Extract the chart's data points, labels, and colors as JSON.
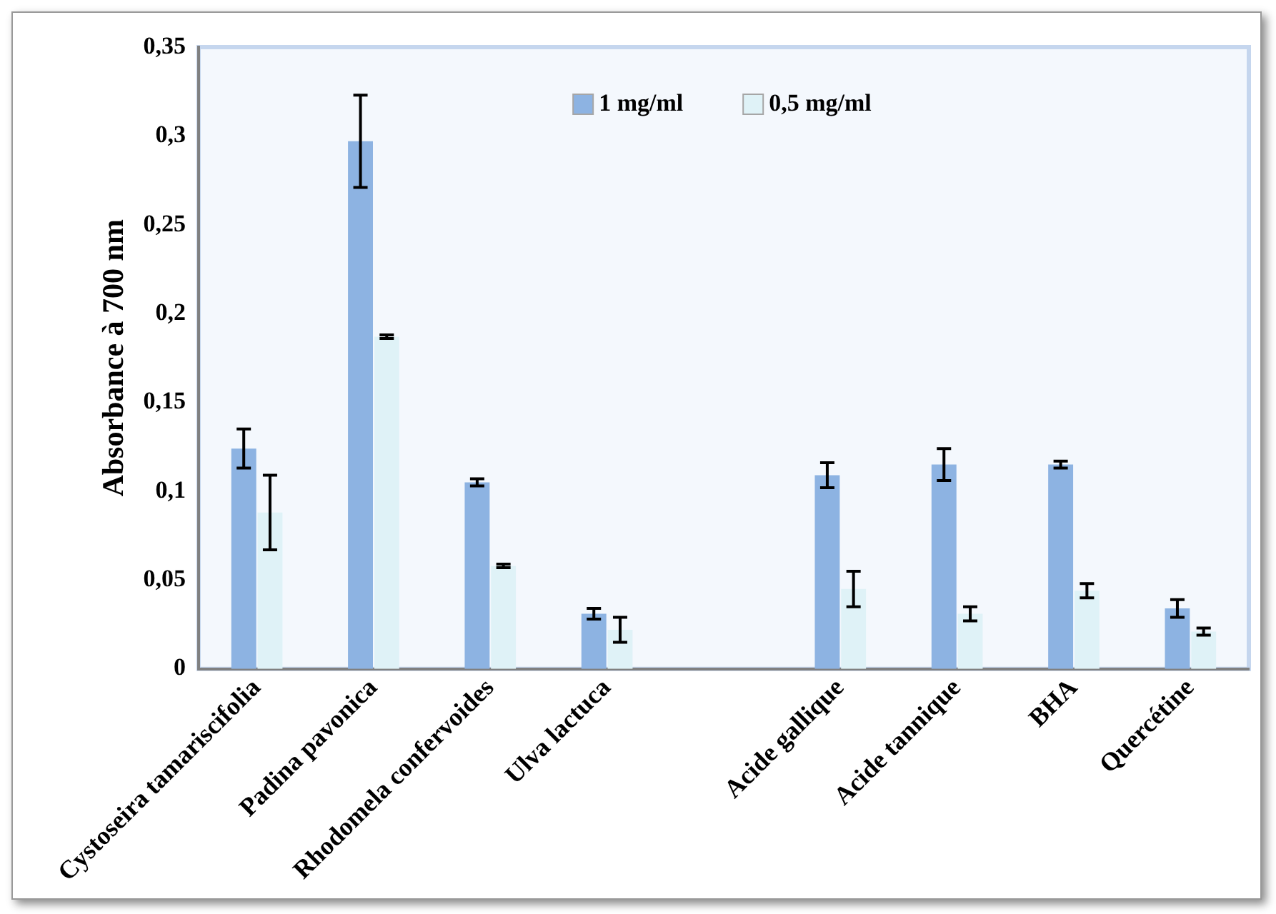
{
  "chart_data": {
    "type": "bar",
    "ylabel": "Absorbance à 700 nm",
    "categories": [
      "Cystoseira tamariscifolia",
      "Padina pavonica",
      "Rhodomela confervoides",
      "Ulva lactuca",
      null,
      "Acide gallique",
      "Acide tannique",
      "BHA",
      "Quercétine"
    ],
    "series": [
      {
        "name": "1 mg/ml",
        "color": "#8db3e2",
        "values": [
          0.124,
          0.297,
          0.105,
          0.031,
          null,
          0.109,
          0.115,
          0.115,
          0.034
        ],
        "errors": [
          0.011,
          0.026,
          0.002,
          0.003,
          null,
          0.007,
          0.009,
          0.002,
          0.005
        ]
      },
      {
        "name": "0,5 mg/ml",
        "color": "#dff2f7",
        "values": [
          0.088,
          0.187,
          0.058,
          0.022,
          null,
          0.045,
          0.031,
          0.044,
          0.021
        ],
        "errors": [
          0.021,
          0.001,
          0.001,
          0.007,
          null,
          0.01,
          0.004,
          0.004,
          0.002
        ]
      }
    ],
    "ylim": [
      0,
      0.35
    ],
    "yticks": [
      0,
      {
        "value": 0.05,
        "label": "0,05"
      },
      {
        "value": 0.1,
        "label": "0,1"
      },
      {
        "value": 0.15,
        "label": "0,15"
      },
      {
        "value": 0.2,
        "label": "0,2"
      },
      {
        "value": 0.25,
        "label": "0,25"
      },
      {
        "value": 0.3,
        "label": "0,3"
      },
      {
        "value": 0.35,
        "label": "0,35"
      }
    ],
    "grid": false,
    "legend": "top"
  }
}
